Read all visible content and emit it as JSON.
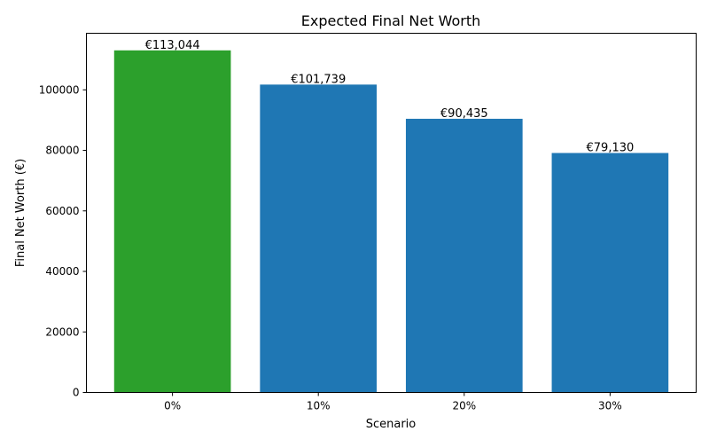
{
  "chart_data": {
    "type": "bar",
    "title": "Expected Final Net Worth",
    "xlabel": "Scenario",
    "ylabel": "Final Net Worth (€)",
    "categories": [
      "0%",
      "10%",
      "20%",
      "30%"
    ],
    "values": [
      113044,
      101739,
      90435,
      79130
    ],
    "data_labels": [
      "€113,044",
      "€101,739",
      "€90,435",
      "€79,130"
    ],
    "colors": [
      "#2ca02c",
      "#1f77b4",
      "#1f77b4",
      "#1f77b4"
    ],
    "ylim": [
      0,
      118696
    ],
    "yticks": [
      0,
      20000,
      40000,
      60000,
      80000,
      100000
    ],
    "ytick_labels": [
      "0",
      "20000",
      "40000",
      "60000",
      "80000",
      "100000"
    ],
    "grid": false,
    "legend": "none"
  }
}
